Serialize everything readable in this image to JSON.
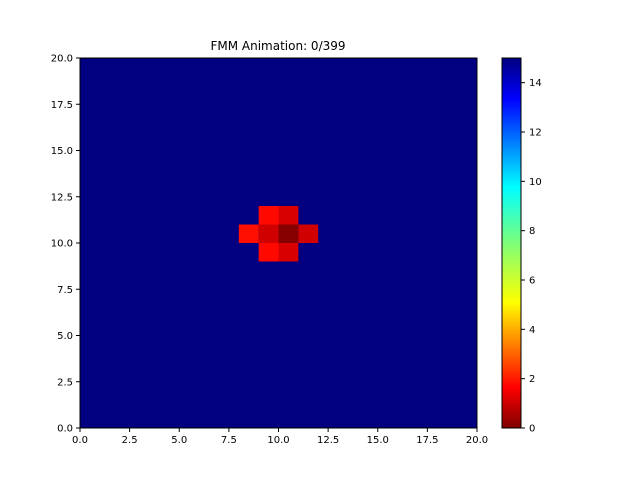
{
  "chart_data": {
    "type": "heatmap",
    "title": "FMM Animation: 0/399",
    "xlim": [
      0,
      20
    ],
    "ylim": [
      0,
      20
    ],
    "xticks": [
      "0.0",
      "2.5",
      "5.0",
      "7.5",
      "10.0",
      "12.5",
      "15.0",
      "17.5",
      "20.0"
    ],
    "yticks": [
      "0.0",
      "2.5",
      "5.0",
      "7.5",
      "10.0",
      "12.5",
      "15.0",
      "17.5",
      "20.0"
    ],
    "grid": false,
    "colormap": "jet_r",
    "background_value": 15,
    "cell_size": 1,
    "cells": [
      {
        "x": 9,
        "y": 11,
        "value": 2.0
      },
      {
        "x": 10,
        "y": 11,
        "value": 1.3
      },
      {
        "x": 8,
        "y": 10,
        "value": 2.1
      },
      {
        "x": 9,
        "y": 10,
        "value": 1.2
      },
      {
        "x": 10,
        "y": 10,
        "value": 0.1
      },
      {
        "x": 11,
        "y": 10,
        "value": 1.2
      },
      {
        "x": 9,
        "y": 9,
        "value": 2.0
      },
      {
        "x": 10,
        "y": 9,
        "value": 1.3
      }
    ],
    "colorbar": {
      "range": [
        0,
        15
      ],
      "ticks": [
        "0",
        "2",
        "4",
        "6",
        "8",
        "10",
        "12",
        "14"
      ]
    }
  }
}
